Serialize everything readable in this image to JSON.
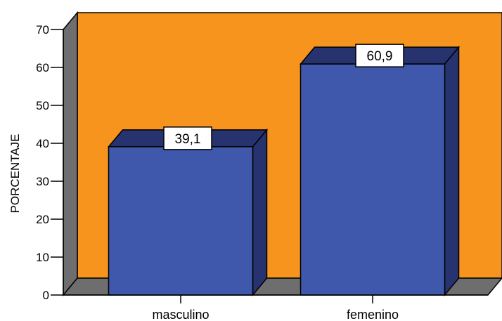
{
  "chart_data": {
    "type": "bar",
    "categories": [
      "masculino",
      "femenino"
    ],
    "values": [
      39.1,
      60.9
    ],
    "data_labels": [
      "39,1",
      "60,9"
    ],
    "title": "",
    "xlabel": "",
    "ylabel": "PORCENTAJE",
    "ylim": [
      0,
      70
    ],
    "yticks": [
      0,
      10,
      20,
      30,
      40,
      50,
      60,
      70
    ],
    "ytick_labels": [
      "0",
      "10",
      "20",
      "30",
      "40",
      "50",
      "60",
      "70"
    ],
    "grid": false,
    "legend": "none",
    "style": "3d",
    "colors": {
      "wall_back": "#F7941D",
      "wall_side": "#6E6E6E",
      "floor": "#6E6E6E",
      "bar_front": "#3F58AC",
      "bar_side": "#27336E",
      "bar_top": "#27336E",
      "label_box": "#FFFFFF"
    }
  }
}
